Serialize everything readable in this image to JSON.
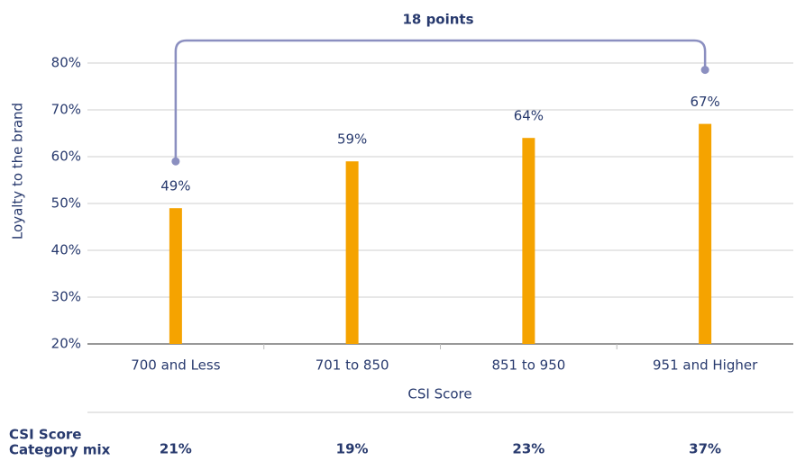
{
  "chart_data": {
    "type": "bar",
    "annotation": "18 points",
    "y_label": "Loyalty to the brand",
    "x_label": "CSI Score",
    "categories": [
      "700 and Less",
      "701 to 850",
      "851 to 950",
      "951 and Higher"
    ],
    "values": [
      49,
      59,
      64,
      67
    ],
    "value_labels": [
      "49%",
      "59%",
      "64%",
      "67%"
    ],
    "color": "#f5a300",
    "ylim": [
      20,
      80
    ],
    "yticks": [
      {
        "value": 20,
        "label": "20%"
      },
      {
        "value": 30,
        "label": "30%"
      },
      {
        "value": 40,
        "label": "40%"
      },
      {
        "value": 50,
        "label": "50%"
      },
      {
        "value": 60,
        "label": "60%"
      },
      {
        "value": 70,
        "label": "70%"
      },
      {
        "value": 80,
        "label": "80%"
      }
    ],
    "grid": true,
    "mix": {
      "label": [
        "CSI Score",
        "Category mix"
      ],
      "values": [
        21,
        19,
        23,
        37
      ],
      "value_labels": [
        "21%",
        "19%",
        "23%",
        "37%"
      ]
    }
  }
}
